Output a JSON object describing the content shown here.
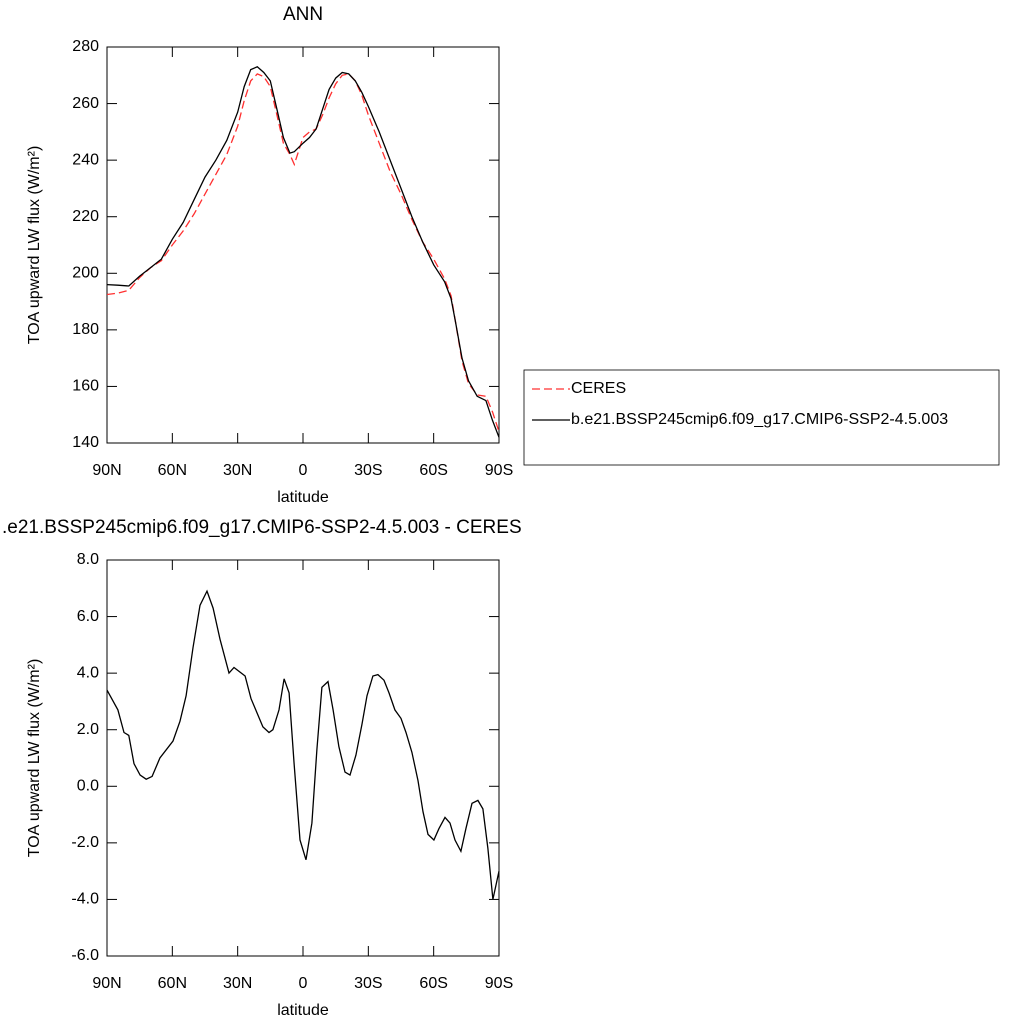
{
  "chart_data": [
    {
      "type": "line",
      "title": "ANN",
      "xlabel": "latitude",
      "ylabel": "TOA upward LW flux (W/m²)",
      "x": [
        90,
        85,
        80,
        75,
        70,
        65,
        60,
        55,
        50,
        45,
        40,
        35,
        30,
        27,
        24,
        21,
        18,
        15,
        12,
        9,
        6,
        4,
        0,
        -3,
        -6,
        -9,
        -12,
        -15,
        -18,
        -21,
        -24,
        -27,
        -30,
        -35,
        -40,
        -45,
        -50,
        -55,
        -60,
        -65,
        -68,
        -70,
        -73,
        -76,
        -80,
        -84,
        -87,
        -90
      ],
      "series": [
        {
          "name": "CERES",
          "color": "#ff3030",
          "dashed": true,
          "values": [
            192.5,
            193,
            194,
            198.5,
            202,
            204.5,
            210,
            215,
            221,
            228,
            235,
            242,
            252,
            261,
            268,
            270.5,
            269.5,
            266,
            256,
            246,
            242,
            238.5,
            248,
            250,
            251,
            256,
            262,
            267,
            270,
            270.5,
            268,
            263,
            256,
            246,
            236,
            228,
            219,
            211,
            205,
            198,
            192,
            183,
            169,
            161,
            157,
            156.5,
            151,
            144
          ]
        },
        {
          "name": "b.e21.BSSP245cmip6.f09_g17.CMIP6-SSP2-4.5.003",
          "color": "#000000",
          "dashed": false,
          "values": [
            196,
            195.8,
            195.5,
            199,
            202,
            205,
            212,
            218,
            226,
            234,
            240,
            247,
            257,
            266,
            272,
            273,
            271,
            268,
            258,
            248,
            242.5,
            243,
            246,
            248,
            251,
            258,
            265,
            269,
            271,
            270.5,
            268,
            264,
            259,
            250,
            240,
            230,
            220,
            211,
            203,
            197,
            191,
            183,
            170,
            162,
            156.5,
            155,
            148,
            142
          ]
        }
      ],
      "xlim": [
        90,
        -90
      ],
      "xticks": [
        {
          "value": 90,
          "label": "90N"
        },
        {
          "value": 60,
          "label": "60N"
        },
        {
          "value": 30,
          "label": "30N"
        },
        0,
        {
          "value": -30,
          "label": "30S"
        },
        {
          "value": -60,
          "label": "60S"
        },
        {
          "value": -90,
          "label": "90S"
        }
      ],
      "ylim": [
        140,
        280
      ],
      "yticks": [
        140,
        160,
        180,
        200,
        220,
        240,
        260,
        280
      ],
      "legend": "right"
    },
    {
      "type": "line",
      "title": ".e21.BSSP245cmip6.f09_g17.CMIP6-SSP2-4.5.003 - CERES",
      "xlabel": "latitude",
      "ylabel": "TOA upward LW flux (W/m²)",
      "x": [
        90,
        85,
        82.2,
        80,
        77.6,
        74.8,
        72,
        69.3,
        65.7,
        59.7,
        56.5,
        53.7,
        50.5,
        47.3,
        44.1,
        41.3,
        38.1,
        34,
        31.7,
        26.6,
        23.9,
        18.4,
        15.6,
        13.8,
        11,
        8.7,
        6.4,
        4.1,
        1.4,
        -1.4,
        -4.1,
        -6.4,
        -8.7,
        -11.5,
        -13.8,
        -16.5,
        -19.3,
        -21.6,
        -24.3,
        -27.1,
        -29.4,
        -32.1,
        -34.4,
        -37.2,
        -39.5,
        -42.2,
        -45,
        -47.3,
        -50,
        -52.8,
        -55.1,
        -57.4,
        -60.1,
        -62.4,
        -65.2,
        -67.5,
        -69.8,
        -72.5,
        -74.8,
        -77.6,
        -80.3,
        -82.6,
        -84.9,
        -87.2,
        -90
      ],
      "values": [
        3.4,
        2.7,
        1.9,
        1.8,
        0.8,
        0.4,
        0.25,
        0.35,
        1.0,
        1.6,
        2.3,
        3.2,
        4.9,
        6.4,
        6.9,
        6.3,
        5.2,
        4.0,
        4.2,
        3.9,
        3.1,
        2.1,
        1.9,
        2.0,
        2.7,
        3.8,
        3.3,
        0.8,
        -1.9,
        -2.6,
        -1.3,
        1.3,
        3.5,
        3.7,
        2.7,
        1.4,
        0.5,
        0.4,
        1.1,
        2.2,
        3.2,
        3.9,
        3.95,
        3.75,
        3.3,
        2.7,
        2.4,
        1.9,
        1.2,
        0.2,
        -0.9,
        -1.7,
        -1.9,
        -1.5,
        -1.1,
        -1.3,
        -1.9,
        -2.3,
        -1.5,
        -0.6,
        -0.5,
        -0.8,
        -2.2,
        -4.0,
        -3.0
      ],
      "color": "#000000",
      "xlim": [
        90,
        -90
      ],
      "xticks": [
        {
          "value": 90,
          "label": "90N"
        },
        {
          "value": 60,
          "label": "60N"
        },
        {
          "value": 30,
          "label": "30N"
        },
        0,
        {
          "value": -30,
          "label": "30S"
        },
        {
          "value": -60,
          "label": "60S"
        },
        {
          "value": -90,
          "label": "90S"
        }
      ],
      "ylim": [
        -6,
        8
      ],
      "yticks": [
        {
          "value": -6,
          "label": "-6.0"
        },
        {
          "value": -4,
          "label": "-4.0"
        },
        {
          "value": -2,
          "label": "-2.0"
        },
        {
          "value": 0,
          "label": "0.0"
        },
        {
          "value": 2,
          "label": "2.0"
        },
        {
          "value": 4,
          "label": "4.0"
        },
        {
          "value": 6,
          "label": "6.0"
        },
        {
          "value": 8,
          "label": "8.0"
        }
      ]
    }
  ]
}
